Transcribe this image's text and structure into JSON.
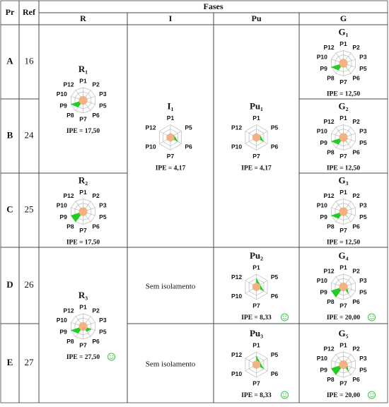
{
  "header": {
    "pr": "Pr",
    "ref": "Ref",
    "fases": "Fases",
    "phases": [
      "R",
      "I",
      "Pu",
      "G"
    ]
  },
  "rows": [
    {
      "pr": "A",
      "ref": 16
    },
    {
      "pr": "B",
      "ref": 24
    },
    {
      "pr": "C",
      "ref": 25
    },
    {
      "pr": "D",
      "ref": 26
    },
    {
      "pr": "E",
      "ref": 27
    }
  ],
  "columns": [
    {
      "cells": [
        {
          "title": "R₁",
          "axes": [
            "P1",
            "P2",
            "P3",
            "P5",
            "P6",
            "P7",
            "P8",
            "P9",
            "P10",
            "P12"
          ],
          "rlim": [
            0,
            3
          ],
          "rticks": [
            1,
            2,
            3
          ],
          "series": [
            {
              "color": "#22cc22",
              "values": [
                0,
                0,
                0,
                0,
                1,
                0,
                2,
                3,
                0,
                0
              ]
            },
            {
              "color": "#f4b183",
              "values": [
                1,
                1,
                1,
                1,
                1,
                1,
                1,
                1,
                1,
                1
              ]
            }
          ],
          "ipe": "IPE = 17,50",
          "smiley": false
        },
        {
          "title": "R₂",
          "axes": [
            "P1",
            "P2",
            "P3",
            "P5",
            "P6",
            "P7",
            "P8",
            "P9",
            "P10",
            "P12"
          ],
          "rlim": [
            0,
            3
          ],
          "rticks": [
            1,
            2,
            3
          ],
          "series": [
            {
              "color": "#22cc22",
              "values": [
                0,
                0,
                0,
                0,
                1,
                0,
                3,
                3,
                0,
                0
              ]
            },
            {
              "color": "#f4b183",
              "values": [
                1,
                1,
                1,
                1,
                1,
                1,
                1,
                1,
                1,
                1
              ]
            }
          ],
          "ipe": "IPE = 17,50",
          "smiley": false
        },
        {
          "title": "R₃",
          "axes": [
            "P1",
            "P2",
            "P3",
            "P5",
            "P6",
            "P7",
            "P8",
            "P9",
            "P10",
            "P12"
          ],
          "rlim": [
            0,
            3
          ],
          "rticks": [
            1,
            2,
            3
          ],
          "series": [
            {
              "color": "#22cc22",
              "values": [
                0,
                0,
                0,
                2,
                1.5,
                0,
                2,
                3,
                0,
                0
              ]
            },
            {
              "color": "#f4b183",
              "values": [
                1,
                1,
                1,
                1,
                1,
                1,
                1,
                1,
                1,
                1
              ]
            }
          ],
          "ipe": "IPE = 27,50",
          "smiley": true
        }
      ]
    },
    {
      "cells": [
        {
          "title": "I₁",
          "axes": [
            "P1",
            "P5",
            "P6",
            "P7",
            "P10",
            "P12"
          ],
          "rlim": [
            0,
            3
          ],
          "rticks": [
            1,
            2,
            3
          ],
          "series": [
            {
              "color": "#22cc22",
              "values": [
                0,
                1,
                2,
                0,
                0,
                0
              ]
            },
            {
              "color": "#f4b183",
              "values": [
                1,
                1,
                1,
                1,
                1,
                1
              ]
            }
          ],
          "ipe": "IPE = 4,17",
          "smiley": false
        },
        {
          "text": "Sem isolamento"
        },
        {
          "text": "Sem isolamento"
        }
      ]
    },
    {
      "cells": [
        {
          "title": "Pu₁",
          "axes": [
            "P1",
            "P5",
            "P6",
            "P7",
            "P10",
            "P12"
          ],
          "rlim": [
            0,
            3
          ],
          "rticks": [
            1,
            2,
            3
          ],
          "series": [
            {
              "color": "#22cc22",
              "values": [
                0,
                1,
                2,
                0,
                0,
                0
              ]
            },
            {
              "color": "#f4b183",
              "values": [
                1,
                1,
                1,
                1,
                1,
                1
              ]
            }
          ],
          "ipe": "IPE = 4,17",
          "smiley": false
        },
        {
          "title": "Pu₂",
          "axes": [
            "P1",
            "P5",
            "P6",
            "P7",
            "P10",
            "P12"
          ],
          "rlim": [
            0,
            3
          ],
          "rticks": [
            1,
            2,
            3
          ],
          "series": [
            {
              "color": "#22cc22",
              "values": [
                2,
                1,
                2,
                0,
                0,
                0
              ]
            },
            {
              "color": "#f4b183",
              "values": [
                1,
                1,
                1,
                1,
                1,
                1
              ]
            }
          ],
          "ipe": "IPE = 8,33",
          "smiley": true
        },
        {
          "title": "Pu₃",
          "axes": [
            "P1",
            "P5",
            "P6",
            "P7",
            "P10",
            "P12"
          ],
          "rlim": [
            0,
            3
          ],
          "rticks": [
            1,
            2,
            3
          ],
          "series": [
            {
              "color": "#22cc22",
              "values": [
                2,
                1,
                2,
                0,
                0,
                0
              ]
            },
            {
              "color": "#f4b183",
              "values": [
                1,
                1,
                1,
                1,
                1,
                1
              ]
            }
          ],
          "ipe": "IPE = 8,33",
          "smiley": true
        }
      ]
    },
    {
      "cells": [
        {
          "title": "G₁",
          "axes": [
            "P1",
            "P2",
            "P3",
            "P5",
            "P6",
            "P7",
            "P8",
            "P9",
            "P10",
            "P12"
          ],
          "rlim": [
            0,
            3
          ],
          "rticks": [
            1,
            2,
            3
          ],
          "series": [
            {
              "color": "#22cc22",
              "values": [
                0,
                0,
                0,
                0,
                1.5,
                0,
                2,
                3,
                0,
                0
              ]
            },
            {
              "color": "#f4b183",
              "values": [
                1,
                1,
                1,
                1,
                1,
                1,
                1,
                1,
                1,
                1
              ]
            }
          ],
          "ipe": "IPE = 12,50",
          "smiley": false
        },
        {
          "title": "G₂",
          "axes": [
            "P1",
            "P2",
            "P3",
            "P5",
            "P6",
            "P7",
            "P8",
            "P9",
            "P10",
            "P12"
          ],
          "rlim": [
            0,
            3
          ],
          "rticks": [
            1,
            2,
            3
          ],
          "series": [
            {
              "color": "#22cc22",
              "values": [
                0,
                0,
                0,
                0,
                1.5,
                0,
                2,
                3,
                0,
                0
              ]
            },
            {
              "color": "#f4b183",
              "values": [
                1,
                1,
                1,
                1,
                1,
                1,
                1,
                1,
                1,
                1
              ]
            }
          ],
          "ipe": "IPE = 12,50",
          "smiley": false
        },
        {
          "title": "G₃",
          "axes": [
            "P1",
            "P2",
            "P3",
            "P5",
            "P6",
            "P7",
            "P8",
            "P9",
            "P10",
            "P12"
          ],
          "rlim": [
            0,
            3
          ],
          "rticks": [
            1,
            2,
            3
          ],
          "series": [
            {
              "color": "#22cc22",
              "values": [
                0,
                0,
                0,
                0,
                1.5,
                0,
                2,
                3,
                0,
                0
              ]
            },
            {
              "color": "#f4b183",
              "values": [
                1,
                1,
                1,
                1,
                1,
                1,
                1,
                1,
                1,
                1
              ]
            }
          ],
          "ipe": "IPE = 12,50",
          "smiley": false
        },
        {
          "title": "G₄",
          "axes": [
            "P1",
            "P2",
            "P3",
            "P5",
            "P6",
            "P7",
            "P8",
            "P9",
            "P10",
            "P12"
          ],
          "rlim": [
            0,
            3
          ],
          "rticks": [
            1,
            2,
            3
          ],
          "series": [
            {
              "color": "#22cc22",
              "values": [
                0,
                0,
                0,
                1,
                2,
                0,
                3,
                3,
                0,
                0
              ]
            },
            {
              "color": "#f4b183",
              "values": [
                1,
                1,
                1,
                1,
                1,
                1,
                1,
                1,
                1,
                1
              ]
            }
          ],
          "ipe": "IPE = 20,00",
          "smiley": true
        },
        {
          "title": "G₅",
          "axes": [
            "P1",
            "P2",
            "P3",
            "P5",
            "P6",
            "P7",
            "P8",
            "P9",
            "P10",
            "P12"
          ],
          "rlim": [
            0,
            3
          ],
          "rticks": [
            1,
            2,
            3
          ],
          "series": [
            {
              "color": "#22cc22",
              "values": [
                0,
                0,
                0,
                1,
                2,
                0,
                3,
                3,
                0,
                0
              ]
            },
            {
              "color": "#f4b183",
              "values": [
                1,
                1,
                1,
                1,
                1,
                1,
                1,
                1,
                1,
                1
              ]
            }
          ],
          "ipe": "IPE = 20,00",
          "smiley": true
        }
      ]
    }
  ]
}
